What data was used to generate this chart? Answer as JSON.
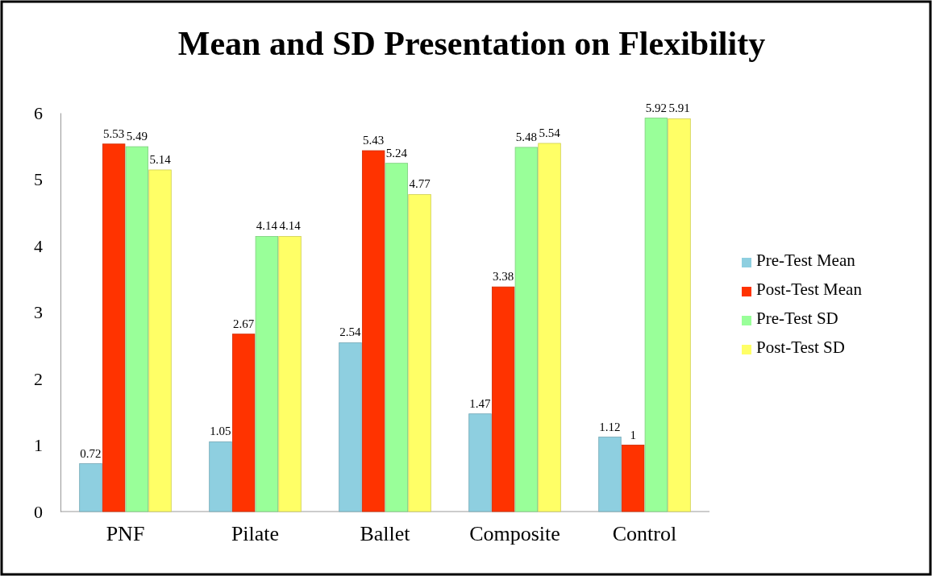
{
  "chart_data": {
    "type": "bar",
    "title": "Mean and SD Presentation on Flexibility",
    "categories": [
      "PNF",
      "Pilate",
      "Ballet",
      "Composite",
      "Control"
    ],
    "series": [
      {
        "name": "Pre-Test Mean",
        "color": "#8ecfe0",
        "values": [
          0.72,
          1.05,
          2.54,
          1.47,
          1.12
        ]
      },
      {
        "name": "Post-Test Mean",
        "color": "#ff3300",
        "values": [
          5.53,
          2.67,
          5.43,
          3.38,
          1
        ]
      },
      {
        "name": "Pre-Test SD",
        "color": "#99ff99",
        "values": [
          5.49,
          4.14,
          5.24,
          5.48,
          5.92
        ]
      },
      {
        "name": "Post-Test SD",
        "color": "#ffff66",
        "values": [
          5.14,
          4.14,
          4.77,
          5.54,
          5.91
        ]
      }
    ],
    "ylim": [
      0,
      6
    ],
    "yticks": [
      0,
      1,
      2,
      3,
      4,
      5,
      6
    ],
    "grid": false,
    "legend": "right",
    "data_labels": true
  }
}
